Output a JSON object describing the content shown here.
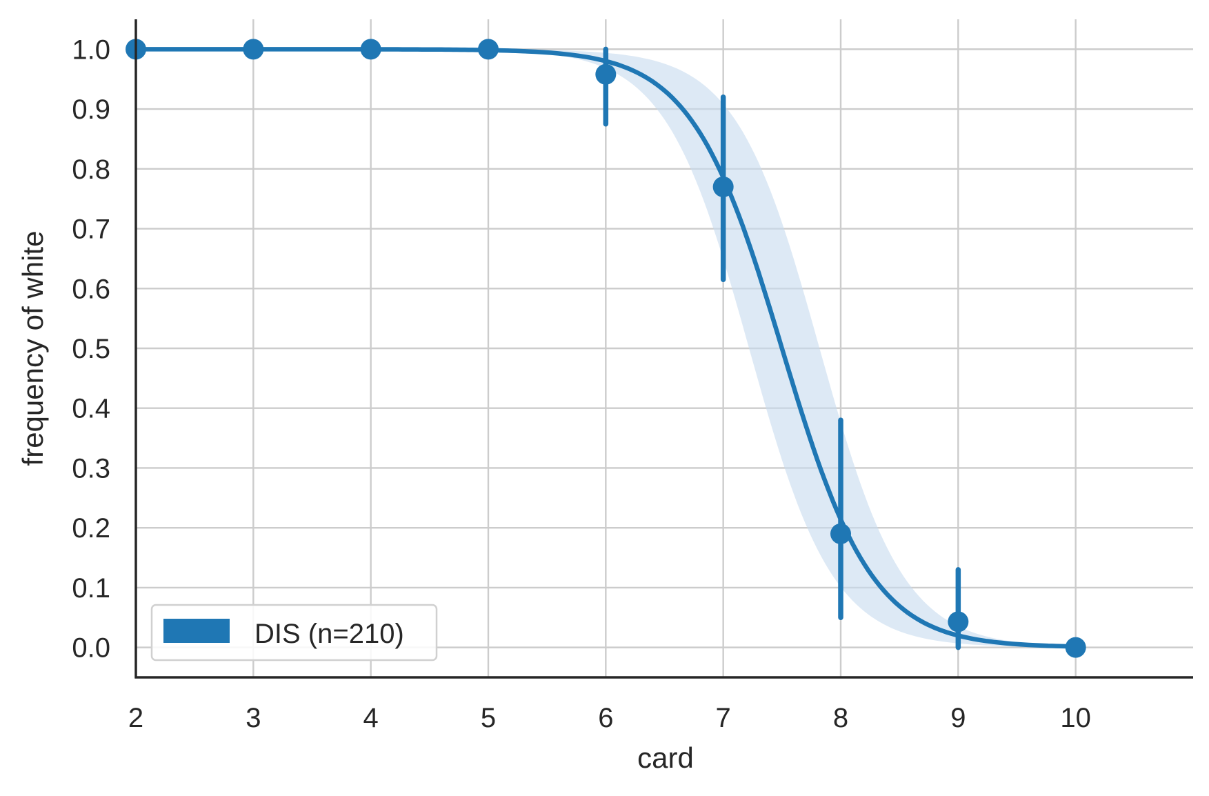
{
  "chart_data": {
    "type": "line",
    "title": "",
    "xlabel": "card",
    "ylabel": "frequency of white",
    "xlim": [
      2,
      11
    ],
    "ylim": [
      -0.05,
      1.05
    ],
    "grid": true,
    "legend_position": "lower-left",
    "x_ticks": [
      "2",
      "3",
      "4",
      "5",
      "6",
      "7",
      "8",
      "9",
      "10"
    ],
    "y_ticks": [
      "0.0",
      "0.1",
      "0.2",
      "0.3",
      "0.4",
      "0.5",
      "0.6",
      "0.7",
      "0.8",
      "0.9",
      "1.0"
    ],
    "series": [
      {
        "name": "DIS (n=210)",
        "color": "#1f77b4",
        "points": [
          {
            "x": 2,
            "y": 1.0,
            "err_low": 1.0,
            "err_high": 1.0
          },
          {
            "x": 3,
            "y": 1.0,
            "err_low": 1.0,
            "err_high": 1.0
          },
          {
            "x": 4,
            "y": 1.0,
            "err_low": 1.0,
            "err_high": 1.0
          },
          {
            "x": 5,
            "y": 1.0,
            "err_low": 1.0,
            "err_high": 1.0
          },
          {
            "x": 6,
            "y": 0.958,
            "err_low": 0.875,
            "err_high": 1.0
          },
          {
            "x": 7,
            "y": 0.77,
            "err_low": 0.615,
            "err_high": 0.92
          },
          {
            "x": 8,
            "y": 0.19,
            "err_low": 0.05,
            "err_high": 0.38
          },
          {
            "x": 9,
            "y": 0.043,
            "err_low": 0.0,
            "err_high": 0.13
          },
          {
            "x": 10,
            "y": 0.0,
            "err_low": 0.0,
            "err_high": 0.0
          }
        ],
        "fit_curve": {
          "midpoint": 7.5,
          "slope": 2.6
        },
        "ci_band": {
          "band_color": "#c6dbef",
          "lower_midpoint": 7.22,
          "upper_midpoint": 7.82,
          "slope": 2.8
        }
      }
    ]
  }
}
